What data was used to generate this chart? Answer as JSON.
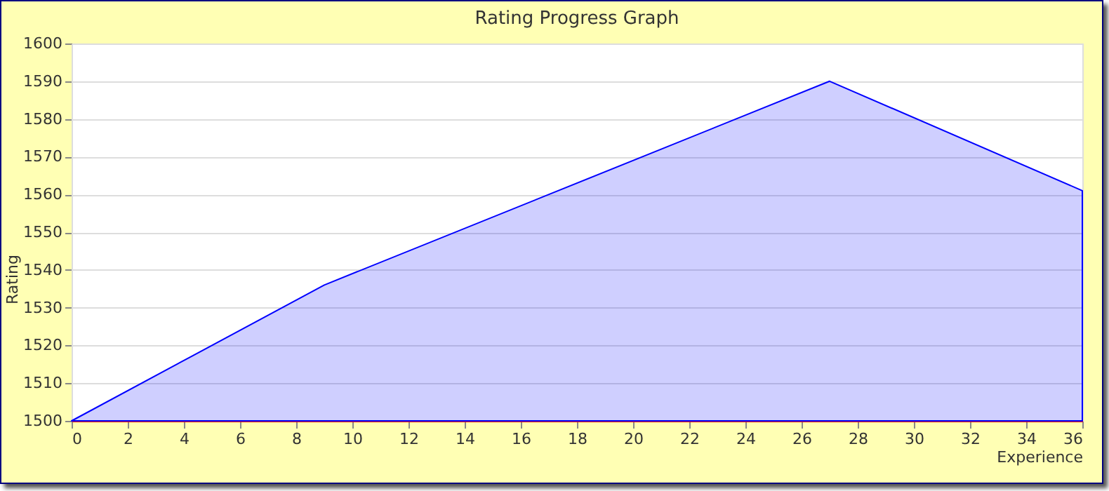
{
  "chart_data": {
    "type": "area",
    "title": "Rating Progress Graph",
    "xlabel": "Experience",
    "ylabel": "Rating",
    "x": [
      0,
      9,
      27,
      36
    ],
    "series": [
      {
        "color": "#0000ff",
        "values": [
          1500,
          1536,
          1590,
          1561
        ]
      }
    ],
    "xlim": [
      0,
      36
    ],
    "xticks": [
      0,
      2,
      4,
      6,
      8,
      10,
      12,
      14,
      16,
      18,
      20,
      22,
      24,
      26,
      28,
      30,
      32,
      34,
      36
    ],
    "ylim": [
      1500,
      1600
    ],
    "yticks": [
      1500,
      1510,
      1520,
      1530,
      1540,
      1550,
      1560,
      1570,
      1580,
      1590,
      1600
    ],
    "grid": "y"
  }
}
